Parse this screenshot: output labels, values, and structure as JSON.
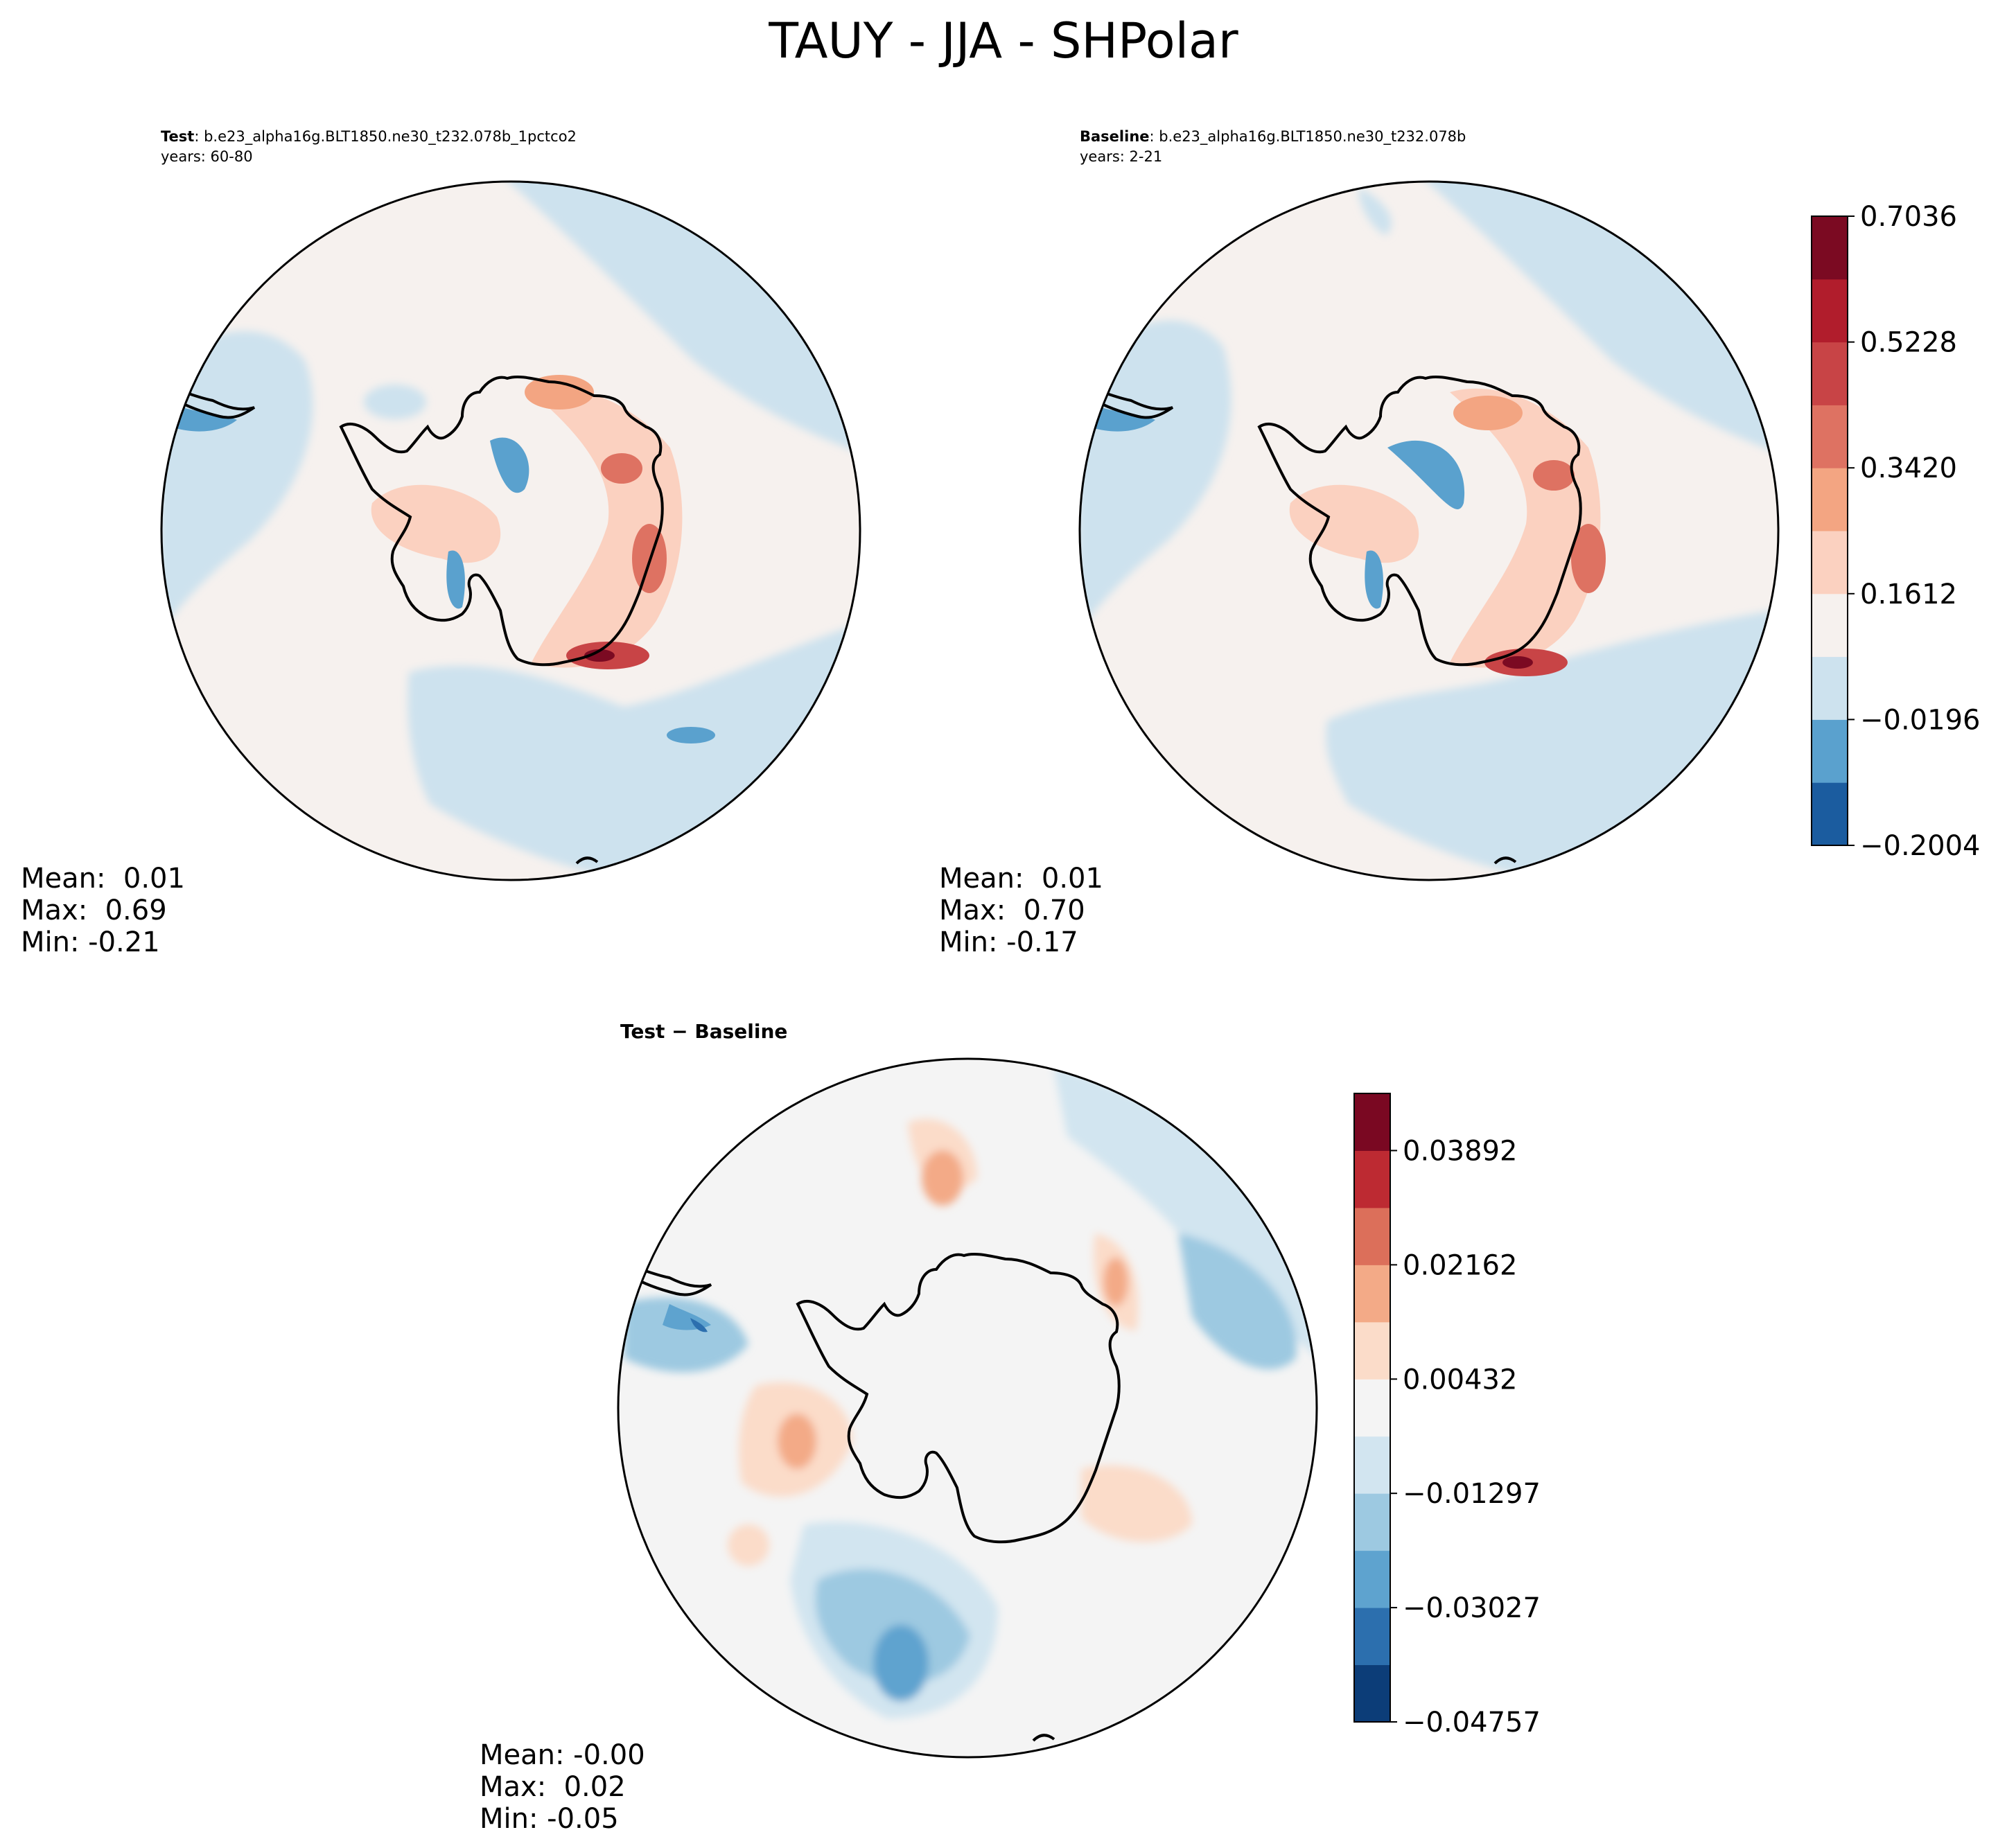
{
  "figure": {
    "title": "TAUY - JJA - SHPolar"
  },
  "panels": {
    "test": {
      "label": "Test",
      "case": ": b.e23_alpha16g.BLT1850.ne30_t232.078b_1pctco2",
      "years": "years: 60-80",
      "stats": {
        "mean": "Mean:  0.01",
        "max": "Max:  0.69",
        "min": "Min: -0.21"
      }
    },
    "baseline": {
      "label": "Baseline",
      "case": ": b.e23_alpha16g.BLT1850.ne30_t232.078b",
      "years": "years: 2-21",
      "stats": {
        "mean": "Mean:  0.01",
        "max": "Max:  0.70",
        "min": "Min: -0.17"
      }
    },
    "diff": {
      "title": "Test − Baseline",
      "stats": {
        "mean": "Mean: -0.00",
        "max": "Max:  0.02",
        "min": "Min: -0.05"
      }
    }
  },
  "colors": {
    "land_outline": "#000000",
    "ocean_neutral": "#f6f1ee",
    "diff_neutral": "#f4f4f4"
  },
  "chart_data": [
    {
      "type": "heatmap",
      "projection": "south polar stereographic",
      "panel": "Test",
      "title": "Test : b.e23_alpha16g.BLT1850.ne30_t232.078b_1pctco2",
      "subtitle": "years: 60-80",
      "mean": 0.01,
      "max": 0.69,
      "min": -0.21,
      "colorbar": {
        "ticks": [
          0.7036,
          0.5228,
          0.342,
          0.1612,
          -0.0196,
          -0.2004
        ],
        "tick_labels": [
          "0.7036",
          "0.5228",
          "0.3420",
          "0.1612",
          "−0.0196",
          "−0.2004"
        ],
        "range": [
          -0.2908,
          0.7036
        ],
        "colors": [
          "#1b5c9f",
          "#5aa1ce",
          "#cde2ee",
          "#f6f1ee",
          "#fbd1c0",
          "#f3a582",
          "#de7262",
          "#c84446",
          "#b11d2c",
          "#7b0a22"
        ]
      }
    },
    {
      "type": "heatmap",
      "projection": "south polar stereographic",
      "panel": "Baseline",
      "title": "Baseline : b.e23_alpha16g.BLT1850.ne30_t232.078b",
      "subtitle": "years: 2-21",
      "mean": 0.01,
      "max": 0.7,
      "min": -0.17
    },
    {
      "type": "heatmap",
      "projection": "south polar stereographic",
      "panel": "Test − Baseline",
      "title": "Test − Baseline",
      "mean": -0.0,
      "max": 0.02,
      "min": -0.05,
      "colorbar": {
        "ticks": [
          0.03892,
          0.02162,
          0.00432,
          -0.01297,
          -0.03027,
          -0.04757
        ],
        "tick_labels": [
          "0.03892",
          "0.02162",
          "0.00432",
          "−0.01297",
          "−0.03027",
          "−0.04757"
        ],
        "range": [
          -0.04757,
          0.04757
        ],
        "colors": [
          "#0c3d78",
          "#2c6fae",
          "#5ea3cf",
          "#9dc9e1",
          "#d2e5f0",
          "#f4f4f4",
          "#fbdcc9",
          "#f3aa87",
          "#dc6f5a",
          "#bd2a32",
          "#7a0822"
        ]
      }
    }
  ]
}
